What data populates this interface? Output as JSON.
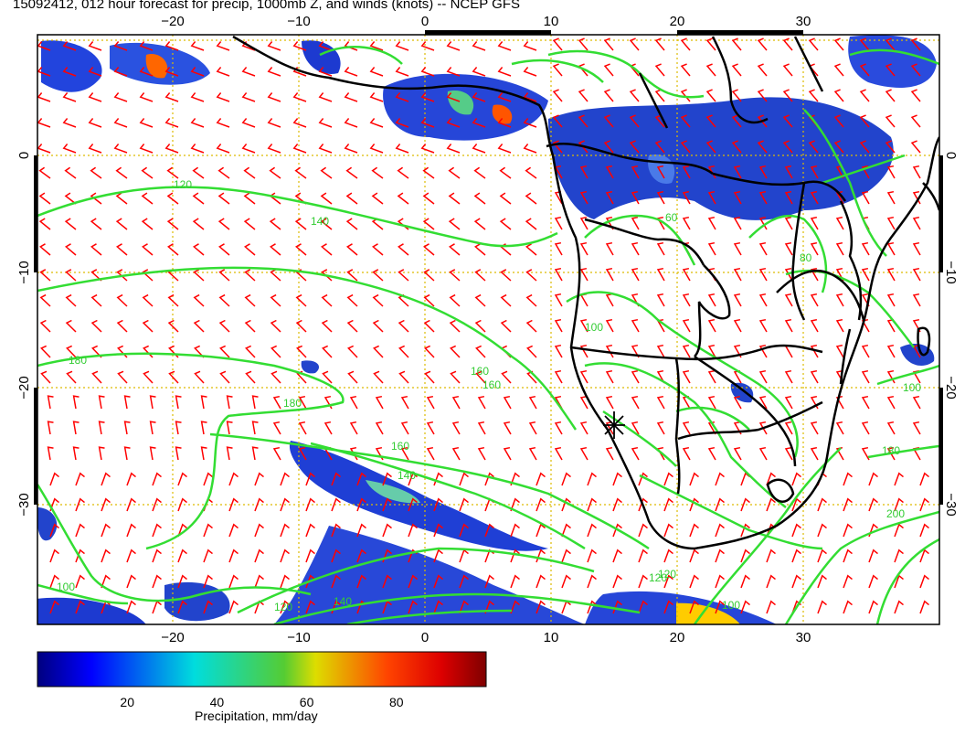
{
  "title": "15092412, 012 hour forecast for precip, 1000mb Z, and winds (knots) -- NCEP GFS",
  "map": {
    "lon_ticks": [
      "−20",
      "−10",
      "0",
      "10",
      "20",
      "30"
    ],
    "lat_ticks": [
      "0",
      "−10",
      "−20",
      "−30"
    ],
    "contour_labels": [
      "120",
      "140",
      "160",
      "180",
      "180",
      "160",
      "140",
      "120",
      "100",
      "120",
      "100",
      "200",
      "180",
      "100",
      "160",
      "140",
      "100",
      "120",
      "80",
      "60"
    ],
    "colors": {
      "wind_barbs": "#ff0000",
      "contours": "#33dd33",
      "coastlines": "#000000",
      "grid": "#ddbb00"
    },
    "marker_icon": "asterisk-marker"
  },
  "colorbar": {
    "ticks": [
      "20",
      "40",
      "60",
      "80"
    ],
    "range": [
      0,
      100
    ],
    "label": "Precipitation, mm/day",
    "colormap": "jet"
  }
}
